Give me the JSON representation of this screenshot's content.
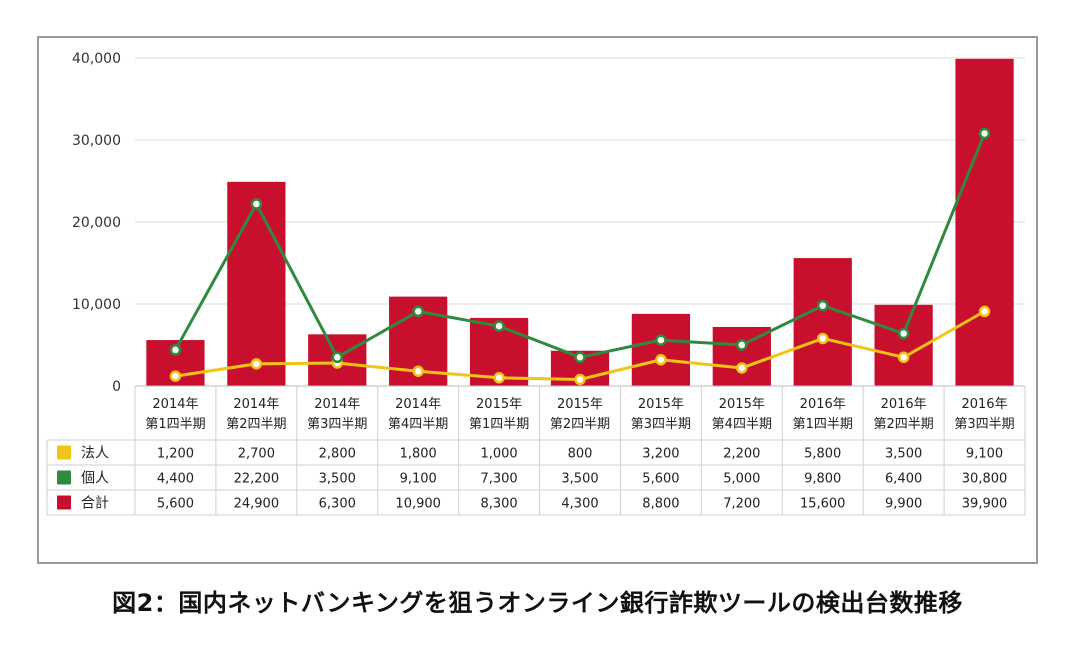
{
  "chart_data": {
    "type": "bar",
    "categories": [
      [
        "2014年",
        "第1四半期"
      ],
      [
        "2014年",
        "第2四半期"
      ],
      [
        "2014年",
        "第3四半期"
      ],
      [
        "2014年",
        "第4四半期"
      ],
      [
        "2015年",
        "第1四半期"
      ],
      [
        "2015年",
        "第2四半期"
      ],
      [
        "2015年",
        "第3四半期"
      ],
      [
        "2015年",
        "第4四半期"
      ],
      [
        "2016年",
        "第1四半期"
      ],
      [
        "2016年",
        "第2四半期"
      ],
      [
        "2016年",
        "第3四半期"
      ]
    ],
    "yticks": [
      "0",
      "10,000",
      "20,000",
      "30,000",
      "40,000"
    ],
    "ylim": [
      0,
      40000
    ],
    "grid": true,
    "series": [
      {
        "name": "法人",
        "kind": "line",
        "color": "#f0c419",
        "values": [
          1200,
          2700,
          2800,
          1800,
          1000,
          800,
          3200,
          2200,
          5800,
          3500,
          9100
        ],
        "labels": [
          "1,200",
          "2,700",
          "2,800",
          "1,800",
          "1,000",
          "800",
          "3,200",
          "2,200",
          "5,800",
          "3,500",
          "9,100"
        ]
      },
      {
        "name": "個人",
        "kind": "line",
        "color": "#2e8b3e",
        "values": [
          4400,
          22200,
          3500,
          9100,
          7300,
          3500,
          5600,
          5000,
          9800,
          6400,
          30800
        ],
        "labels": [
          "4,400",
          "22,200",
          "3,500",
          "9,100",
          "7,300",
          "3,500",
          "5,600",
          "5,000",
          "9,800",
          "6,400",
          "30,800"
        ]
      },
      {
        "name": "合計",
        "kind": "bar",
        "color": "#c8102e",
        "values": [
          5600,
          24900,
          6300,
          10900,
          8300,
          4300,
          8800,
          7200,
          15600,
          9900,
          39900
        ],
        "labels": [
          "5,600",
          "24,900",
          "6,300",
          "10,900",
          "8,300",
          "4,300",
          "8,800",
          "7,200",
          "15,600",
          "9,900",
          "39,900"
        ]
      }
    ]
  },
  "caption": "図2：国内ネットバンキングを狙うオンライン銀行詐欺ツールの検出台数推移"
}
